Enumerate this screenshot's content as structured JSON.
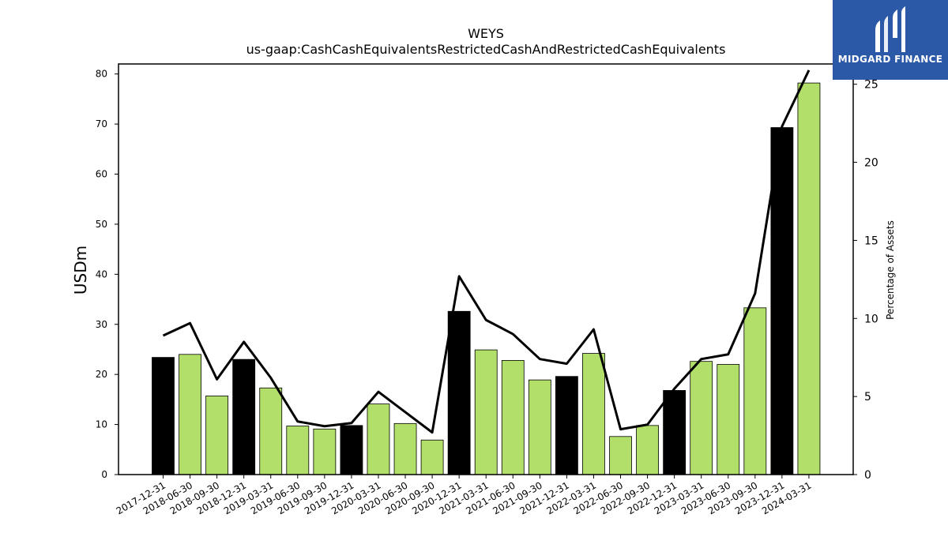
{
  "chart_data": {
    "type": "bar",
    "title": "WEYS",
    "subtitle": "us-gaap:CashCashEquivalentsRestrictedCashAndRestrictedCashEquivalents",
    "ylabel": "USDm",
    "y2label": "Percentage of Assets",
    "ylim": [
      0,
      82
    ],
    "y2lim": [
      0,
      26.3
    ],
    "yticks": [
      0,
      10,
      20,
      30,
      40,
      50,
      60,
      70,
      80
    ],
    "y2ticks": [
      0,
      5,
      10,
      15,
      20,
      25
    ],
    "categories": [
      "2017-12-31",
      "2018-06-30",
      "2018-09-30",
      "2018-12-31",
      "2019-03-31",
      "2019-06-30",
      "2019-09-30",
      "2019-12-31",
      "2020-03-31",
      "2020-06-30",
      "2020-09-30",
      "2020-12-31",
      "2021-03-31",
      "2021-06-30",
      "2021-09-30",
      "2021-12-31",
      "2022-03-31",
      "2022-06-30",
      "2022-09-30",
      "2022-12-31",
      "2023-03-31",
      "2023-06-30",
      "2023-09-30",
      "2023-12-31",
      "2024-03-31"
    ],
    "series": [
      {
        "type": "bar",
        "values": [
          23.4,
          24.0,
          15.7,
          23.0,
          17.3,
          9.7,
          9.1,
          9.8,
          14.1,
          10.2,
          6.9,
          32.6,
          24.9,
          22.8,
          18.9,
          19.6,
          24.2,
          7.6,
          9.8,
          16.8,
          22.6,
          22.0,
          33.3,
          69.3,
          78.2
        ],
        "colors": [
          "#000000",
          "#b2df6a",
          "#b2df6a",
          "#000000",
          "#b2df6a",
          "#b2df6a",
          "#b2df6a",
          "#000000",
          "#b2df6a",
          "#b2df6a",
          "#b2df6a",
          "#000000",
          "#b2df6a",
          "#b2df6a",
          "#b2df6a",
          "#000000",
          "#b2df6a",
          "#b2df6a",
          "#b2df6a",
          "#000000",
          "#b2df6a",
          "#b2df6a",
          "#b2df6a",
          "#000000",
          "#b2df6a"
        ]
      },
      {
        "type": "line",
        "axis": "right",
        "color": "#000000",
        "values": [
          8.9,
          9.7,
          6.1,
          8.5,
          6.2,
          3.4,
          3.1,
          3.3,
          5.3,
          4.0,
          2.7,
          12.7,
          9.9,
          9.0,
          7.4,
          7.1,
          9.3,
          2.9,
          3.2,
          5.5,
          7.4,
          7.7,
          11.6,
          22.3,
          25.9
        ]
      }
    ],
    "grid": false
  },
  "logo": {
    "text": "MIDGARD FINANCE"
  }
}
